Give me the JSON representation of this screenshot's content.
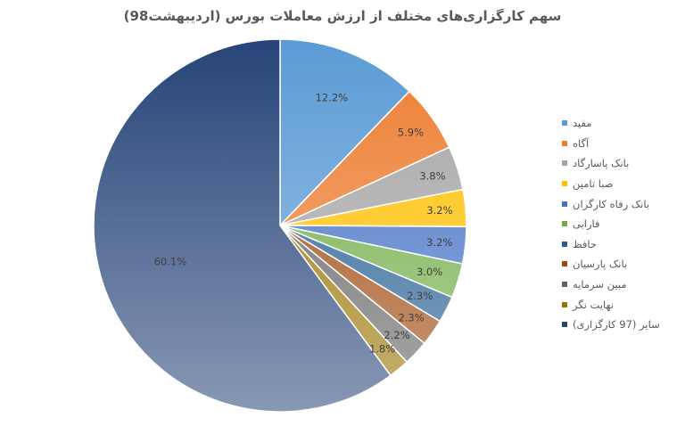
{
  "chart_data": {
    "type": "pie",
    "title": "سهم کارگزاری‌های مختلف از ارزش معاملات بورس (اردیبهشت98)",
    "legend_position": "right",
    "slices": [
      {
        "name": "مفید",
        "value": 12.2,
        "label": "12.2%",
        "color": "#5b9bd5"
      },
      {
        "name": "آگاه",
        "value": 5.9,
        "label": "5.9%",
        "color": "#ed7d31"
      },
      {
        "name": "بانک پاسارگاد",
        "value": 3.8,
        "label": "3.8%",
        "color": "#a5a5a5"
      },
      {
        "name": "صبا تامین",
        "value": 3.2,
        "label": "3.2%",
        "color": "#ffc000"
      },
      {
        "name": "بانک رفاه کارگران",
        "value": 3.2,
        "label": "3.2%",
        "color": "#4472c4"
      },
      {
        "name": "فارابی",
        "value": 3.0,
        "label": "3.0%",
        "color": "#70ad47"
      },
      {
        "name": "حافظ",
        "value": 2.3,
        "label": "2.3%",
        "color": "#255e91"
      },
      {
        "name": "بانک پارسیان",
        "value": 2.3,
        "label": "2.3%",
        "color": "#9e480e"
      },
      {
        "name": "مبین سرمایه",
        "value": 2.2,
        "label": "2.2%",
        "color": "#636363"
      },
      {
        "name": "نهایت نگر",
        "value": 1.8,
        "label": "1.8%",
        "color": "#997300"
      },
      {
        "name": "سایر (97 کارگزاری)",
        "value": 60.1,
        "label": "60.1%",
        "color": "#264478"
      }
    ]
  }
}
